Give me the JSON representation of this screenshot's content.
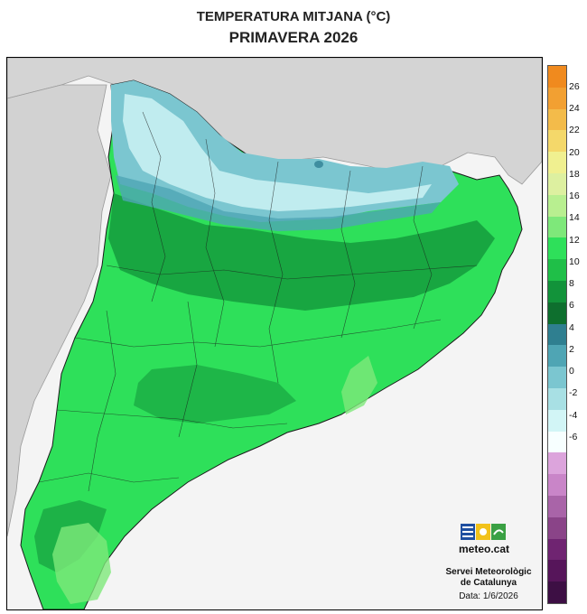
{
  "title": "TEMPERATURA MITJANA (°C)",
  "subtitle": "PRIMAVERA 2026",
  "legend": {
    "labels": [
      "26",
      "24",
      "22",
      "20",
      "18",
      "16",
      "14",
      "12",
      "10",
      "8",
      "6",
      "4",
      "2",
      "0",
      "-2",
      "-4",
      "-6"
    ],
    "colors": [
      "#f08a1e",
      "#f2a032",
      "#f3bb4a",
      "#f4d86a",
      "#f0f090",
      "#ddf0a0",
      "#b8ef90",
      "#7ee87a",
      "#2ee05a",
      "#1fbf48",
      "#12933a",
      "#0e6f2e",
      "#2f7f90",
      "#4fa5b4",
      "#7bc6d0",
      "#a8e0e4",
      "#d2f5f6",
      "#f7ffff",
      "#dca4dc",
      "#c985c8",
      "#a964a8",
      "#8a4488",
      "#6f2471",
      "#56155a",
      "#3d0f44"
    ]
  },
  "branding": {
    "logo_text": "meteo.cat",
    "org_line1": "Servei Meteorològic",
    "org_line2": "de Catalunya",
    "date": "Data: 1/6/2026"
  },
  "map_colors": {
    "land_outside": "#d6d6d6",
    "sea": "#f4f4f4",
    "dominant_green": "#2ee05a",
    "dark_green": "#12933a",
    "mountain_blue": "#7bc6d0"
  }
}
